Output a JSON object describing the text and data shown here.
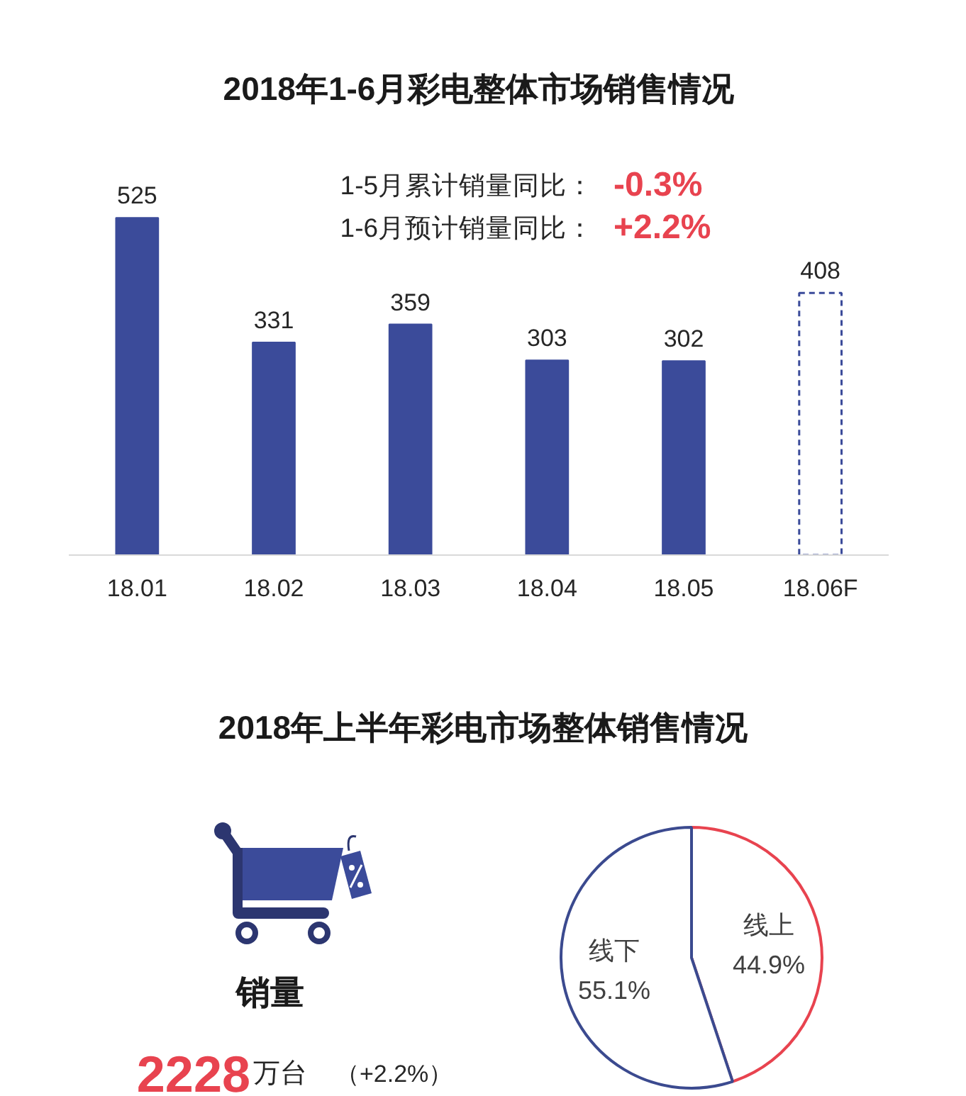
{
  "chart_data": [
    {
      "type": "bar",
      "title": "2018年1-6月彩电整体市场销售情况",
      "annotations": [
        "1-5月累计销量同比：",
        "-0.3%",
        "1-6月预计销量同比：",
        "+2.2%"
      ],
      "categories": [
        "18.01",
        "18.02",
        "18.03",
        "18.04",
        "18.05",
        "18.06F"
      ],
      "stacked": true,
      "series": [
        {
          "color": "#3b4b9a",
          "values": [
            525,
            331,
            359,
            303,
            302,
            null
          ]
        },
        {
          "color": "#3b4b9a",
          "line_style": "dashed",
          "values": [
            null,
            null,
            null,
            null,
            null,
            408
          ]
        }
      ],
      "data_labels": true,
      "tick_labels": "x"
    },
    {
      "type": "other",
      "title": "销量",
      "annotations": [
        "2228",
        "万台",
        "（+2.2%）"
      ]
    },
    {
      "type": "pie",
      "title": "2018年上半年彩电市场整体销售情况",
      "categories": [
        "线上",
        "线下"
      ],
      "values": [
        44.9,
        55.1
      ],
      "colors": [
        "#e8434f",
        "#3b4a8f"
      ],
      "value_labels": [
        "44.9%",
        "55.1%"
      ]
    }
  ]
}
